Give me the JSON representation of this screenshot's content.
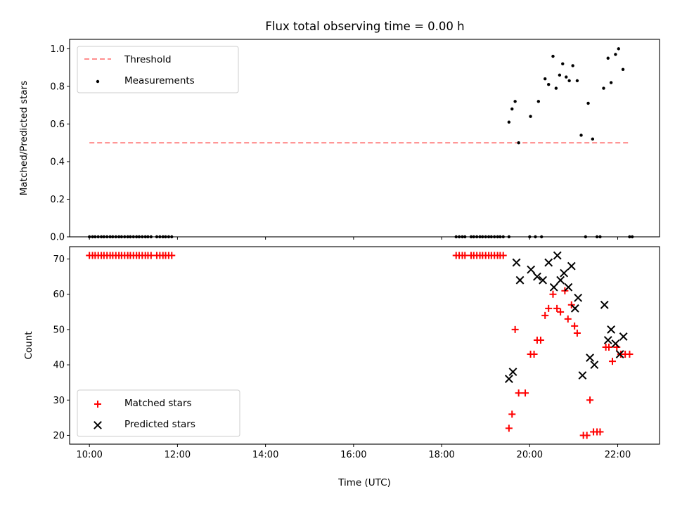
{
  "figure": {
    "title": "Flux total observing time = 0.00 h"
  },
  "chart_data": [
    {
      "type": "scatter",
      "ylabel": "Matched/Predicted stars",
      "xlabel": "",
      "xlim": [
        9.55,
        22.95
      ],
      "ylim": [
        0.0,
        1.05
      ],
      "yticks": [
        0.0,
        0.2,
        0.4,
        0.6,
        0.8,
        1.0
      ],
      "ytick_labels": [
        "0.0",
        "0.2",
        "0.4",
        "0.6",
        "0.8",
        "1.0"
      ],
      "xticks": [
        10,
        12,
        14,
        16,
        18,
        20,
        22
      ],
      "show_xtick_labels": false,
      "grid": false,
      "legend": {
        "position": "upper-left",
        "entries": [
          {
            "label": "Threshold",
            "series": "threshold"
          },
          {
            "label": "Measurements",
            "series": "measurements"
          }
        ]
      },
      "lines": [
        {
          "id": "threshold",
          "name": "Threshold",
          "color": "#ff7f7f",
          "style": "dashed",
          "x": [
            10.0,
            22.25
          ],
          "y": [
            0.5,
            0.5
          ]
        }
      ],
      "series": [
        {
          "id": "measurements",
          "name": "Measurements",
          "color": "#000000",
          "marker": "dot",
          "points": [
            [
              10.0,
              0
            ],
            [
              10.07,
              0
            ],
            [
              10.13,
              0
            ],
            [
              10.2,
              0
            ],
            [
              10.27,
              0
            ],
            [
              10.33,
              0
            ],
            [
              10.4,
              0
            ],
            [
              10.47,
              0
            ],
            [
              10.53,
              0
            ],
            [
              10.6,
              0
            ],
            [
              10.67,
              0
            ],
            [
              10.73,
              0
            ],
            [
              10.8,
              0
            ],
            [
              10.87,
              0
            ],
            [
              10.93,
              0
            ],
            [
              11.0,
              0
            ],
            [
              11.07,
              0
            ],
            [
              11.13,
              0
            ],
            [
              11.2,
              0
            ],
            [
              11.27,
              0
            ],
            [
              11.33,
              0
            ],
            [
              11.4,
              0
            ],
            [
              11.53,
              0
            ],
            [
              11.6,
              0
            ],
            [
              11.67,
              0
            ],
            [
              11.73,
              0
            ],
            [
              11.8,
              0
            ],
            [
              11.87,
              0
            ],
            [
              18.33,
              0
            ],
            [
              18.4,
              0
            ],
            [
              18.47,
              0
            ],
            [
              18.53,
              0
            ],
            [
              18.67,
              0
            ],
            [
              18.73,
              0
            ],
            [
              18.8,
              0
            ],
            [
              18.87,
              0
            ],
            [
              18.93,
              0
            ],
            [
              19.0,
              0
            ],
            [
              19.07,
              0
            ],
            [
              19.13,
              0
            ],
            [
              19.2,
              0
            ],
            [
              19.27,
              0
            ],
            [
              19.33,
              0
            ],
            [
              19.4,
              0
            ],
            [
              19.53,
              0
            ],
            [
              20.0,
              0
            ],
            [
              20.13,
              0
            ],
            [
              20.27,
              0
            ],
            [
              21.27,
              0
            ],
            [
              21.53,
              0
            ],
            [
              21.6,
              0
            ],
            [
              22.27,
              0
            ],
            [
              22.33,
              0
            ],
            [
              19.53,
              0.61
            ],
            [
              19.6,
              0.68
            ],
            [
              19.67,
              0.72
            ],
            [
              19.75,
              0.5
            ],
            [
              20.02,
              0.64
            ],
            [
              20.2,
              0.72
            ],
            [
              20.35,
              0.84
            ],
            [
              20.43,
              0.81
            ],
            [
              20.53,
              0.96
            ],
            [
              20.6,
              0.79
            ],
            [
              20.68,
              0.86
            ],
            [
              20.75,
              0.92
            ],
            [
              20.83,
              0.85
            ],
            [
              20.9,
              0.83
            ],
            [
              20.98,
              0.91
            ],
            [
              21.08,
              0.83
            ],
            [
              21.17,
              0.54
            ],
            [
              21.33,
              0.71
            ],
            [
              21.43,
              0.52
            ],
            [
              21.68,
              0.79
            ],
            [
              21.78,
              0.95
            ],
            [
              21.85,
              0.82
            ],
            [
              21.95,
              0.97
            ],
            [
              22.02,
              1.0
            ],
            [
              22.12,
              0.89
            ]
          ]
        }
      ]
    },
    {
      "type": "scatter",
      "ylabel": "Count",
      "xlabel": "Time (UTC)",
      "xlim": [
        9.55,
        22.95
      ],
      "ylim": [
        17.5,
        73.5
      ],
      "yticks": [
        20,
        30,
        40,
        50,
        60,
        70
      ],
      "ytick_labels": [
        "20",
        "30",
        "40",
        "50",
        "60",
        "70"
      ],
      "xticks": [
        10,
        12,
        14,
        16,
        18,
        20,
        22
      ],
      "xtick_labels": [
        "10:00",
        "12:00",
        "14:00",
        "16:00",
        "18:00",
        "20:00",
        "22:00"
      ],
      "grid": false,
      "legend": {
        "position": "lower-left",
        "entries": [
          {
            "label": "Matched stars",
            "series": "matched"
          },
          {
            "label": "Predicted stars",
            "series": "predicted"
          }
        ]
      },
      "series": [
        {
          "id": "matched",
          "name": "Matched stars",
          "color": "#ff0000",
          "marker": "plus",
          "points": [
            [
              10.0,
              71
            ],
            [
              10.07,
              71
            ],
            [
              10.13,
              71
            ],
            [
              10.2,
              71
            ],
            [
              10.27,
              71
            ],
            [
              10.33,
              71
            ],
            [
              10.4,
              71
            ],
            [
              10.47,
              71
            ],
            [
              10.53,
              71
            ],
            [
              10.6,
              71
            ],
            [
              10.67,
              71
            ],
            [
              10.73,
              71
            ],
            [
              10.8,
              71
            ],
            [
              10.87,
              71
            ],
            [
              10.93,
              71
            ],
            [
              11.0,
              71
            ],
            [
              11.07,
              71
            ],
            [
              11.13,
              71
            ],
            [
              11.2,
              71
            ],
            [
              11.27,
              71
            ],
            [
              11.33,
              71
            ],
            [
              11.4,
              71
            ],
            [
              11.53,
              71
            ],
            [
              11.6,
              71
            ],
            [
              11.67,
              71
            ],
            [
              11.73,
              71
            ],
            [
              11.8,
              71
            ],
            [
              11.87,
              71
            ],
            [
              18.33,
              71
            ],
            [
              18.4,
              71
            ],
            [
              18.47,
              71
            ],
            [
              18.53,
              71
            ],
            [
              18.67,
              71
            ],
            [
              18.73,
              71
            ],
            [
              18.8,
              71
            ],
            [
              18.87,
              71
            ],
            [
              18.93,
              71
            ],
            [
              19.0,
              71
            ],
            [
              19.07,
              71
            ],
            [
              19.13,
              71
            ],
            [
              19.2,
              71
            ],
            [
              19.27,
              71
            ],
            [
              19.33,
              71
            ],
            [
              19.4,
              71
            ],
            [
              19.53,
              22
            ],
            [
              19.6,
              26
            ],
            [
              19.67,
              50
            ],
            [
              19.75,
              32
            ],
            [
              19.9,
              32
            ],
            [
              20.02,
              43
            ],
            [
              20.1,
              43
            ],
            [
              20.17,
              47
            ],
            [
              20.25,
              47
            ],
            [
              20.35,
              54
            ],
            [
              20.43,
              56
            ],
            [
              20.53,
              60
            ],
            [
              20.62,
              56
            ],
            [
              20.7,
              55
            ],
            [
              20.8,
              61
            ],
            [
              20.87,
              53
            ],
            [
              20.95,
              57
            ],
            [
              21.02,
              51
            ],
            [
              21.08,
              49
            ],
            [
              21.22,
              20
            ],
            [
              21.3,
              20
            ],
            [
              21.37,
              30
            ],
            [
              21.45,
              21
            ],
            [
              21.53,
              21
            ],
            [
              21.6,
              21
            ],
            [
              21.73,
              45
            ],
            [
              21.8,
              45
            ],
            [
              21.88,
              41
            ],
            [
              21.98,
              45
            ],
            [
              22.07,
              43
            ],
            [
              22.17,
              43
            ],
            [
              22.27,
              43
            ]
          ]
        },
        {
          "id": "predicted",
          "name": "Predicted stars",
          "color": "#000000",
          "marker": "x",
          "points": [
            [
              19.53,
              36
            ],
            [
              19.62,
              38
            ],
            [
              19.7,
              69
            ],
            [
              19.78,
              64
            ],
            [
              20.03,
              67
            ],
            [
              20.17,
              65
            ],
            [
              20.3,
              64
            ],
            [
              20.43,
              69
            ],
            [
              20.55,
              62
            ],
            [
              20.63,
              71
            ],
            [
              20.7,
              64
            ],
            [
              20.78,
              66
            ],
            [
              20.88,
              62
            ],
            [
              20.95,
              68
            ],
            [
              21.03,
              56
            ],
            [
              21.1,
              59
            ],
            [
              21.2,
              37
            ],
            [
              21.37,
              42
            ],
            [
              21.47,
              40
            ],
            [
              21.7,
              57
            ],
            [
              21.78,
              47
            ],
            [
              21.85,
              50
            ],
            [
              21.95,
              46
            ],
            [
              22.05,
              43
            ],
            [
              22.13,
              48
            ]
          ]
        }
      ]
    }
  ]
}
